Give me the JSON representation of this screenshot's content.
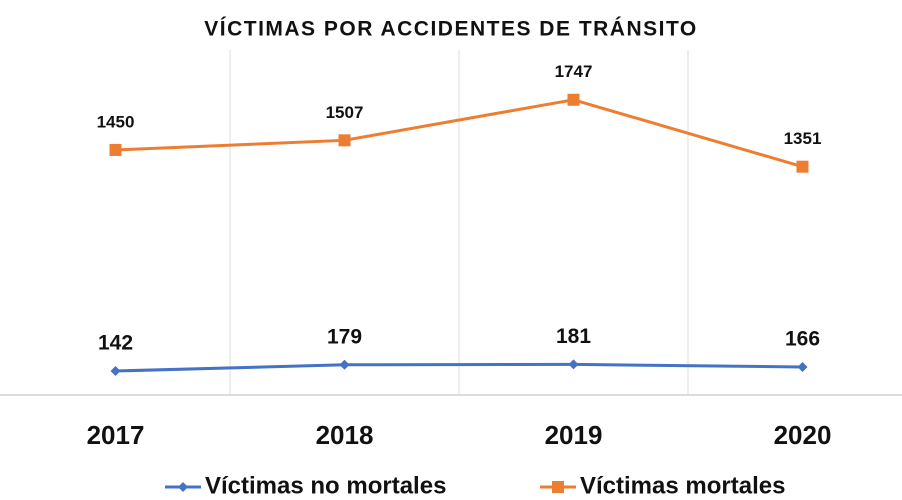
{
  "chart_data": {
    "type": "line",
    "title": "VÍCTIMAS POR ACCIDENTES DE TRÁNSITO",
    "categories": [
      "2017",
      "2018",
      "2019",
      "2020"
    ],
    "series": [
      {
        "name": "Víctimas no mortales",
        "color": "#4472c4",
        "values": [
          142,
          179,
          181,
          166
        ]
      },
      {
        "name": "Víctimas mortales",
        "color": "#ed7d31",
        "values": [
          1450,
          1507,
          1747,
          1351
        ]
      }
    ],
    "ylim": [
      0,
      2000
    ],
    "grid": true,
    "legend": "bottom"
  }
}
